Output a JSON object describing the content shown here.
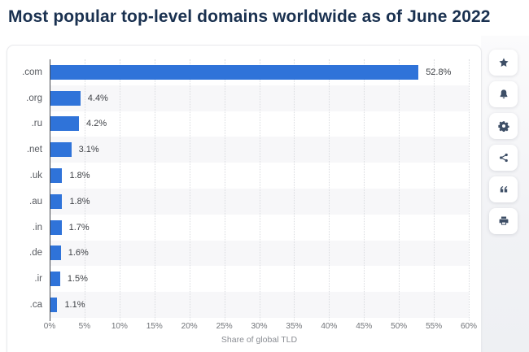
{
  "page": {
    "title": "Most popular top-level domains worldwide as of June 2022"
  },
  "chart_data": {
    "type": "bar",
    "orientation": "horizontal",
    "title": "Most popular top-level domains worldwide as of June 2022",
    "categories": [
      ".com",
      ".org",
      ".ru",
      ".net",
      ".uk",
      ".au",
      ".in",
      ".de",
      ".ir",
      ".ca"
    ],
    "values": [
      52.8,
      4.4,
      4.2,
      3.1,
      1.8,
      1.8,
      1.7,
      1.6,
      1.5,
      1.1
    ],
    "value_labels": [
      "52.8%",
      "4.4%",
      "4.2%",
      "3.1%",
      "1.8%",
      "1.8%",
      "1.7%",
      "1.6%",
      "1.5%",
      "1.1%"
    ],
    "xlabel": "Share of global TLD",
    "ylabel": "",
    "xlim": [
      0,
      60
    ],
    "x_ticks": [
      "0%",
      "5%",
      "10%",
      "15%",
      "20%",
      "25%",
      "30%",
      "35%",
      "40%",
      "45%",
      "50%",
      "55%",
      "60%"
    ],
    "grid": "vertical-dotted",
    "legend": "none",
    "bar_color": "#2f73d9",
    "band_color": "#f7f7f9"
  },
  "toolbar": {
    "buttons": [
      {
        "icon": "star-icon"
      },
      {
        "icon": "bell-icon"
      },
      {
        "icon": "gear-icon"
      },
      {
        "icon": "share-icon"
      },
      {
        "icon": "quote-icon"
      },
      {
        "icon": "print-icon"
      }
    ]
  },
  "colors": {
    "title": "#1a3150",
    "accent_blue": "#2f73d9",
    "axis_line": "#46494e",
    "gridline": "#d9dbdf",
    "icon": "#3d4e66"
  }
}
